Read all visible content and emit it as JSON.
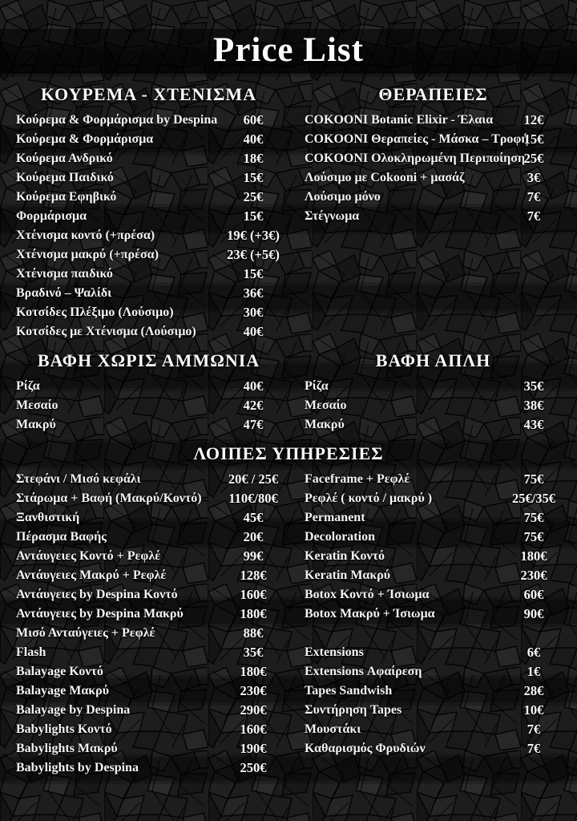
{
  "title": "Price List",
  "colors": {
    "background": "#1f1f1f",
    "crack_lines": "#050505",
    "dark_band": "#000000",
    "text": "#f7f7f5"
  },
  "sections": {
    "kourema": {
      "header": "ΚΟΥΡΕΜΑ - ΧΤΕΝΙΣΜΑ",
      "items": [
        {
          "label": "Κούρεμα & Φορμάρισμα by Despina",
          "price": "60€"
        },
        {
          "label": "Κούρεμα & Φορμάρισμα",
          "price": "40€"
        },
        {
          "label": "Κούρεμα Ανδρικό",
          "price": "18€"
        },
        {
          "label": "Κούρεμα Παιδικό",
          "price": "15€"
        },
        {
          "label": "Κούρεμα Εφηβικό",
          "price": "25€"
        },
        {
          "label": "Φορμάρισμα",
          "price": "15€"
        },
        {
          "label": "Χτένισμα κοντό (+πρέσα)",
          "price": "19€ (+3€)"
        },
        {
          "label": "Χτένισμα μακρύ (+πρέσα)",
          "price": "23€ (+5€)"
        },
        {
          "label": "Χτένισμα παιδικό",
          "price": "15€"
        },
        {
          "label": "Βραδινό – Ψαλίδι",
          "price": "36€"
        },
        {
          "label": "Κοτσίδες Πλέξιμο (Λούσιμο)",
          "price": "30€"
        },
        {
          "label": "Κοτσίδες με Χτένισμα (Λούσιμο)",
          "price": "40€"
        }
      ]
    },
    "therapeies": {
      "header": "ΘΕΡΑΠΕΙΕΣ",
      "items": [
        {
          "label": "COKOONI Botanic Elixir - Έλαια",
          "price": "12€"
        },
        {
          "label": "COKOONI Θεραπείες - Μάσκα – Τροφή",
          "price": "15€"
        },
        {
          "label": "COKOONI Ολοκληρωμένη Περιποίηση",
          "price": "25€"
        },
        {
          "label": "Λούσιμο με Cokooni + μασάζ",
          "price": "3€"
        },
        {
          "label": "Λούσιμο μόνο",
          "price": "7€"
        },
        {
          "label": "Στέγνωμα",
          "price": "7€"
        }
      ]
    },
    "vafi_xoris": {
      "header": "ΒΑΦΗ ΧΩΡΙΣ ΑΜΜΩΝΙΑ",
      "items": [
        {
          "label": "Ρίζα",
          "price": "40€"
        },
        {
          "label": "Μεσαίο",
          "price": "42€"
        },
        {
          "label": "Μακρύ",
          "price": "47€"
        }
      ]
    },
    "vafi_apli": {
      "header": "ΒΑΦΗ ΑΠΛΗ",
      "items": [
        {
          "label": "Ρίζα",
          "price": "35€"
        },
        {
          "label": "Μεσαίο",
          "price": "38€"
        },
        {
          "label": "Μακρύ",
          "price": "43€"
        }
      ]
    },
    "loipes": {
      "header": "ΛΟΙΠΕΣ ΥΠΗΡΕΣΙΕΣ",
      "left": [
        {
          "label": "Στεφάνι / Μισό κεφάλι",
          "price": "20€ / 25€"
        },
        {
          "label": "Στάρωμα + Βαφή (Μακρύ/Κοντό)",
          "price": "110€/80€"
        },
        {
          "label": "Ξανθιστική",
          "price": "45€"
        },
        {
          "label": "Πέρασμα Βαφής",
          "price": "20€"
        },
        {
          "label": "Αντάυγειες Κοντό + Ρεφλέ",
          "price": "99€"
        },
        {
          "label": "Αντάυγειες Μακρύ + Ρεφλέ",
          "price": "128€"
        },
        {
          "label": "Αντάυγειες by Despina Κοντό",
          "price": "160€"
        },
        {
          "label": "Αντάυγειες by Despina Μακρύ",
          "price": "180€"
        },
        {
          "label": "Μισό Ανταύγειες + Ρεφλέ",
          "price": "88€"
        },
        {
          "label": "Flash",
          "price": "35€"
        },
        {
          "label": "Balayage Κοντό",
          "price": "180€"
        },
        {
          "label": "Balayage Μακρύ",
          "price": "230€"
        },
        {
          "label": "Balayage by Despina",
          "price": "290€"
        },
        {
          "label": "Babylights Κοντό",
          "price": "160€"
        },
        {
          "label": "Babylights Μακρύ",
          "price": "190€"
        },
        {
          "label": "Babylights by Despina",
          "price": "250€"
        }
      ],
      "right": [
        {
          "label": "Faceframe + Ρεφλέ",
          "price": "75€"
        },
        {
          "label": "Ρεφλέ ( κοντό / μακρύ )",
          "price": "25€/35€"
        },
        {
          "label": "Permanent",
          "price": "75€"
        },
        {
          "label": "Decoloration",
          "price": "75€"
        },
        {
          "label": "Keratin Κοντό",
          "price": "180€"
        },
        {
          "label": "Keratin Μακρύ",
          "price": "230€"
        },
        {
          "label": "Botox Κοντό + Ίσιωμα",
          "price": "60€"
        },
        {
          "label": "Botox Μακρύ + Ίσιωμα",
          "price": "90€"
        },
        {
          "label": "",
          "price": ""
        },
        {
          "label": "Extensions",
          "price": "6€"
        },
        {
          "label": "Extensions Αφαίρεση",
          "price": "1€"
        },
        {
          "label": "Tapes Sandwish",
          "price": "28€"
        },
        {
          "label": "Συντήρηση Tapes",
          "price": "10€"
        },
        {
          "label": "Μουστάκι",
          "price": "7€"
        },
        {
          "label": "Καθαρισμός Φρυδιών",
          "price": "7€"
        }
      ]
    }
  }
}
